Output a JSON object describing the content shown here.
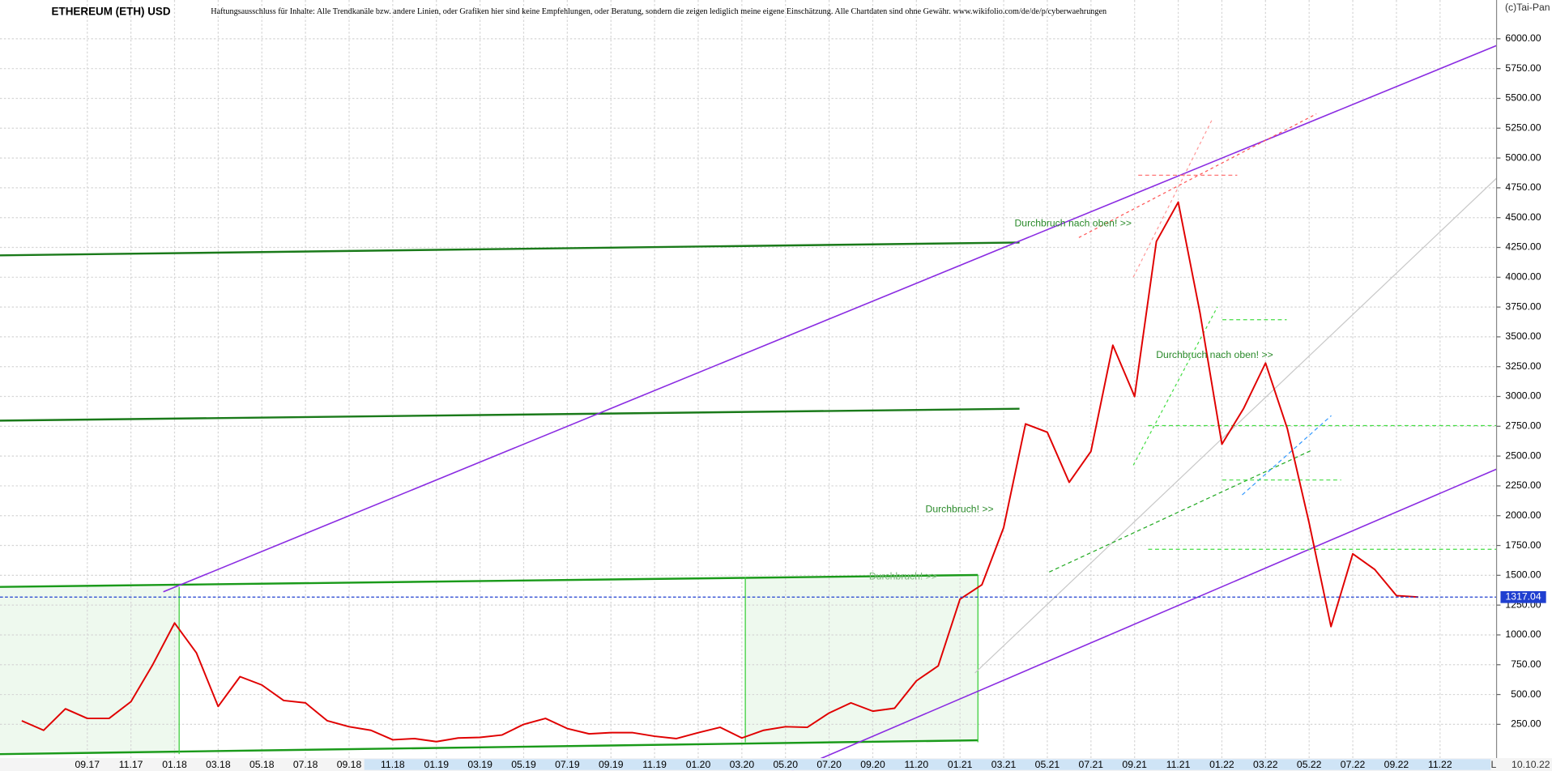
{
  "chart_data": {
    "type": "line",
    "title": "ETHEREUM (ETH) USD",
    "subtitle": "Haftungsausschluss für Inhalte: Alle Trendkanäle bzw. andere Linien, oder Grafiken hier sind keine Empfehlungen, oder Beratung, sondern die zeigen lediglich meine eigene Einschätzung. Alle Chartdaten sind ohne Gewähr.  www.wikifolio.com/de/de/p/cyberwaehrungen",
    "copyright": "(c)Tai-Pan",
    "as_of": "10.10.22",
    "scale_mode": "L",
    "annotations": [
      "Durchbruch nach oben! >>",
      "Durchbruch nach oben! >>",
      "Durchbruch! >>",
      "Durchbruch! >>"
    ],
    "color": "#e00000",
    "x": [
      "2017-06",
      "2017-07",
      "2017-08",
      "2017-09",
      "2017-10",
      "2017-11",
      "2017-12",
      "2018-01",
      "2018-02",
      "2018-03",
      "2018-04",
      "2018-05",
      "2018-06",
      "2018-07",
      "2018-08",
      "2018-09",
      "2018-10",
      "2018-11",
      "2018-12",
      "2019-01",
      "2019-02",
      "2019-03",
      "2019-04",
      "2019-05",
      "2019-06",
      "2019-07",
      "2019-08",
      "2019-09",
      "2019-10",
      "2019-11",
      "2019-12",
      "2020-01",
      "2020-02",
      "2020-03",
      "2020-04",
      "2020-05",
      "2020-06",
      "2020-07",
      "2020-08",
      "2020-09",
      "2020-10",
      "2020-11",
      "2020-12",
      "2021-01",
      "2021-02",
      "2021-03",
      "2021-04",
      "2021-05",
      "2021-06",
      "2021-07",
      "2021-08",
      "2021-09",
      "2021-10",
      "2021-11",
      "2021-12",
      "2022-01",
      "2022-02",
      "2022-03",
      "2022-04",
      "2022-05",
      "2022-06",
      "2022-07",
      "2022-08",
      "2022-09",
      "2022-10"
    ],
    "values": [
      280,
      200,
      380,
      300,
      300,
      440,
      750,
      1100,
      850,
      400,
      650,
      580,
      450,
      430,
      280,
      230,
      200,
      120,
      130,
      105,
      135,
      140,
      160,
      250,
      300,
      215,
      170,
      180,
      180,
      150,
      130,
      180,
      225,
      135,
      200,
      230,
      225,
      345,
      430,
      360,
      385,
      615,
      740,
      1300,
      1420,
      1900,
      2770,
      2700,
      2280,
      2540,
      3430,
      3000,
      4300,
      4630,
      3700,
      2600,
      2900,
      3280,
      2730,
      1940,
      1070,
      1680,
      1550,
      1330,
      1317.04
    ],
    "last_price": 1317.04,
    "xlim": [
      "2017-05",
      "2023-01"
    ],
    "xticks": [
      {
        "value": "2017-09",
        "label": "09.17"
      },
      {
        "value": "2017-11",
        "label": "11.17"
      },
      {
        "value": "2018-01",
        "label": "01.18"
      },
      {
        "value": "2018-03",
        "label": "03.18"
      },
      {
        "value": "2018-05",
        "label": "05.18"
      },
      {
        "value": "2018-07",
        "label": "07.18"
      },
      {
        "value": "2018-09",
        "label": "09.18"
      },
      {
        "value": "2018-11",
        "label": "11.18"
      },
      {
        "value": "2019-01",
        "label": "01.19"
      },
      {
        "value": "2019-03",
        "label": "03.19"
      },
      {
        "value": "2019-05",
        "label": "05.19"
      },
      {
        "value": "2019-07",
        "label": "07.19"
      },
      {
        "value": "2019-09",
        "label": "09.19"
      },
      {
        "value": "2019-11",
        "label": "11.19"
      },
      {
        "value": "2020-01",
        "label": "01.20"
      },
      {
        "value": "2020-03",
        "label": "03.20"
      },
      {
        "value": "2020-05",
        "label": "05.20"
      },
      {
        "value": "2020-07",
        "label": "07.20"
      },
      {
        "value": "2020-09",
        "label": "09.20"
      },
      {
        "value": "2020-11",
        "label": "11.20"
      },
      {
        "value": "2021-01",
        "label": "01.21"
      },
      {
        "value": "2021-03",
        "label": "03.21"
      },
      {
        "value": "2021-05",
        "label": "05.21"
      },
      {
        "value": "2021-07",
        "label": "07.21"
      },
      {
        "value": "2021-09",
        "label": "09.21"
      },
      {
        "value": "2021-11",
        "label": "11.21"
      },
      {
        "value": "2022-01",
        "label": "01.22"
      },
      {
        "value": "2022-03",
        "label": "03.22"
      },
      {
        "value": "2022-05",
        "label": "05.22"
      },
      {
        "value": "2022-07",
        "label": "07.22"
      },
      {
        "value": "2022-09",
        "label": "09.22"
      },
      {
        "value": "2022-11",
        "label": "11.22"
      }
    ],
    "ylim": [
      0,
      6300
    ],
    "yticks": [
      {
        "value": 250,
        "label": "250.00"
      },
      {
        "value": 500,
        "label": "500.00"
      },
      {
        "value": 750,
        "label": "750.00"
      },
      {
        "value": 1000,
        "label": "1000.00"
      },
      {
        "value": 1250,
        "label": "1250.00"
      },
      {
        "value": 1500,
        "label": "1500.00"
      },
      {
        "value": 1750,
        "label": "1750.00"
      },
      {
        "value": 2000,
        "label": "2000.00"
      },
      {
        "value": 2250,
        "label": "2250.00"
      },
      {
        "value": 2500,
        "label": "2500.00"
      },
      {
        "value": 2750,
        "label": "2750.00"
      },
      {
        "value": 3000,
        "label": "3000.00"
      },
      {
        "value": 3250,
        "label": "3250.00"
      },
      {
        "value": 3500,
        "label": "3500.00"
      },
      {
        "value": 3750,
        "label": "3750.00"
      },
      {
        "value": 4000,
        "label": "4000.00"
      },
      {
        "value": 4250,
        "label": "4250.00"
      },
      {
        "value": 4500,
        "label": "4500.00"
      },
      {
        "value": 4750,
        "label": "4750.00"
      },
      {
        "value": 5000,
        "label": "5000.00"
      },
      {
        "value": 5250,
        "label": "5250.00"
      },
      {
        "value": 5500,
        "label": "5500.00"
      },
      {
        "value": 5750,
        "label": "5750.00"
      },
      {
        "value": 6000,
        "label": "6000.00"
      }
    ],
    "grid": true
  }
}
